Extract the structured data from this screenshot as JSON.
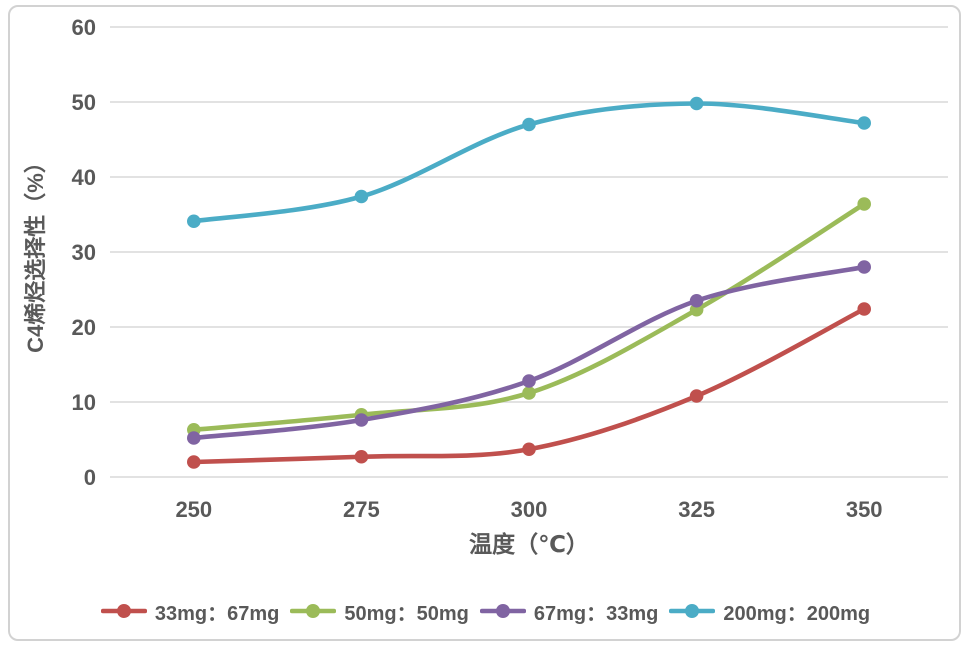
{
  "chart_data": {
    "type": "line",
    "title": "",
    "xlabel": "温度（℃）",
    "ylabel": "C4烯烃选择性（%）",
    "categories": [
      250,
      275,
      300,
      325,
      350
    ],
    "yticks": [
      0,
      10,
      20,
      30,
      40,
      50,
      60
    ],
    "ylim": [
      0,
      60
    ],
    "grid": "horizontal",
    "line_style": "smooth",
    "legend_position": "bottom",
    "series": [
      {
        "name": "33mg：67mg",
        "color": "#C0504D",
        "values": [
          2.0,
          2.7,
          3.7,
          10.8,
          22.4
        ]
      },
      {
        "name": "50mg：50mg",
        "color": "#9BBB59",
        "values": [
          6.3,
          8.3,
          11.2,
          22.3,
          36.4
        ]
      },
      {
        "name": "67mg：33mg",
        "color": "#8064A2",
        "values": [
          5.2,
          7.6,
          12.8,
          23.5,
          28.0
        ]
      },
      {
        "name": "200mg：200mg",
        "color": "#4BACC6",
        "values": [
          34.1,
          37.4,
          47.0,
          49.8,
          47.2
        ]
      }
    ]
  },
  "colors": {
    "gridline": "#D9D9D9",
    "tick_text": "#595959",
    "card_border": "#D2D2D2",
    "background": "#FFFFFF"
  }
}
